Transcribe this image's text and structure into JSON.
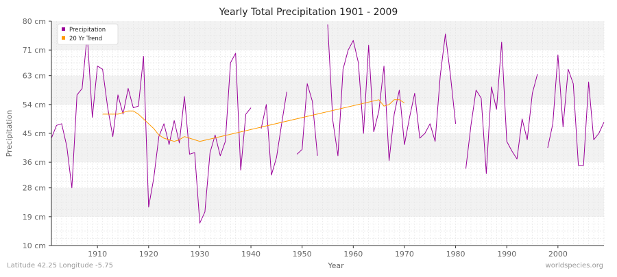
{
  "title": "Yearly Total Precipitation 1901 - 2009",
  "footer": {
    "location": "Latitude 42.25 Longitude -5.75",
    "source": "worldspecies.org"
  },
  "colors": {
    "precipitation": "#990099",
    "trend": "#ff9900",
    "band_light": "#f2f2f2",
    "band_white": "#ffffff",
    "grid": "#dddddd",
    "axis": "#333333",
    "text": "#666666"
  },
  "chart_data": {
    "type": "line",
    "title": "Yearly Total Precipitation 1901 - 2009",
    "xlabel": "Year",
    "ylabel": "Precipitation",
    "xlim": [
      1901,
      2009
    ],
    "ylim": [
      10,
      80
    ],
    "y_ticks": [
      10,
      19,
      28,
      36,
      45,
      54,
      63,
      71,
      80
    ],
    "y_tick_labels": [
      "10 cm",
      "19 cm",
      "28 cm",
      "36 cm",
      "45 cm",
      "54 cm",
      "63 cm",
      "71 cm",
      "80 cm"
    ],
    "x_ticks": [
      1910,
      1920,
      1930,
      1940,
      1950,
      1960,
      1970,
      1980,
      1990,
      2000
    ],
    "x_tick_labels": [
      "1910",
      "1920",
      "1930",
      "1940",
      "1950",
      "1960",
      "1970",
      "1980",
      "1990",
      "2000"
    ],
    "grid": true,
    "legend_position": "top-left",
    "series": [
      {
        "name": "Precipitation",
        "color": "#990099",
        "x": [
          1901,
          1902,
          1903,
          1904,
          1905,
          1906,
          1907,
          1908,
          1909,
          1910,
          1911,
          1912,
          1913,
          1914,
          1915,
          1916,
          1917,
          1918,
          1919,
          1920,
          1921,
          1922,
          1923,
          1924,
          1925,
          1926,
          1927,
          1928,
          1929,
          1930,
          1931,
          1932,
          1933,
          1934,
          1935,
          1936,
          1937,
          1938,
          1939,
          1940,
          1941,
          1942,
          1943,
          1944,
          1945,
          1946,
          1947,
          1948,
          1949,
          1950,
          1951,
          1952,
          1953,
          1954,
          1955,
          1956,
          1957,
          1958,
          1959,
          1960,
          1961,
          1962,
          1963,
          1964,
          1965,
          1966,
          1967,
          1968,
          1969,
          1970,
          1971,
          1972,
          1973,
          1974,
          1975,
          1976,
          1977,
          1978,
          1979,
          1980,
          1981,
          1982,
          1983,
          1984,
          1985,
          1986,
          1987,
          1988,
          1989,
          1990,
          1991,
          1992,
          1993,
          1994,
          1995,
          1996,
          1997,
          1998,
          1999,
          2000,
          2001,
          2002,
          2003,
          2004,
          2005,
          2006,
          2007,
          2008,
          2009
        ],
        "y": [
          43.5,
          47.5,
          48,
          41,
          28,
          57,
          59,
          76,
          50,
          66,
          65,
          53,
          44,
          57,
          51,
          59,
          53,
          53.5,
          69,
          22,
          31,
          44,
          48,
          41.5,
          49,
          42,
          56.5,
          38.5,
          39,
          17,
          20.5,
          39,
          44.5,
          38,
          42.5,
          67,
          70,
          33.5,
          51,
          53,
          null,
          46.5,
          54,
          32,
          37.5,
          48,
          58,
          null,
          38.5,
          40,
          60.5,
          55,
          38,
          null,
          79,
          49,
          38,
          65,
          71,
          74,
          67,
          45,
          72.5,
          45.5,
          52,
          66,
          36.5,
          51,
          58.5,
          41.5,
          50,
          57.5,
          43.5,
          45,
          48,
          42.5,
          63,
          76,
          63,
          48,
          null,
          34,
          47.5,
          58.5,
          56,
          32.5,
          59.5,
          52.5,
          73.5,
          42.5,
          39.5,
          37,
          49.5,
          43,
          57.5,
          63.5,
          null,
          40.5,
          48,
          69.5,
          47,
          65,
          60.5,
          35,
          35,
          61,
          43,
          45,
          48.5
        ]
      },
      {
        "name": "20 Yr Trend",
        "color": "#ff9900",
        "x": [
          1911,
          1912,
          1913,
          1914,
          1915,
          1916,
          1917,
          1918,
          1919,
          1920,
          1921,
          1922,
          1923,
          1924,
          1925,
          1926,
          1927,
          1928,
          1929,
          1930,
          1965,
          1966,
          1967,
          1968,
          1969,
          1970
        ],
        "y": [
          51,
          51,
          51,
          51,
          51.5,
          52,
          52,
          51,
          49.5,
          48,
          46.5,
          44.5,
          43.5,
          43,
          42.5,
          43,
          44,
          43.5,
          43,
          42.5,
          55.5,
          53.5,
          54,
          55.5,
          55.5,
          54.5
        ]
      }
    ]
  }
}
